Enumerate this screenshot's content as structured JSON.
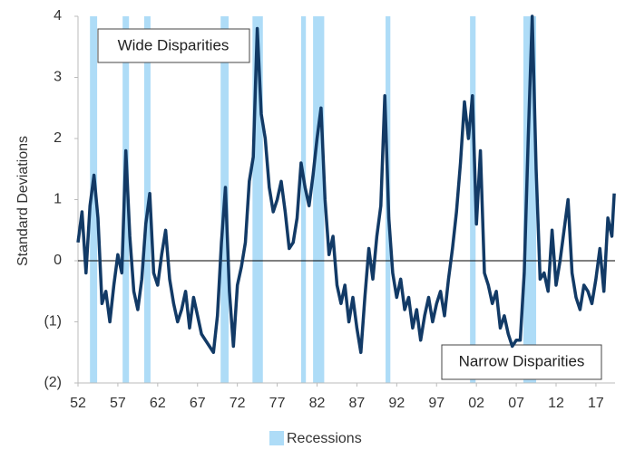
{
  "chart_data": {
    "type": "line",
    "y_label": "Standard Deviations",
    "annotations": [
      "Wide Disparities",
      "Narrow Disparities"
    ],
    "xlim": [
      1952,
      2019.4
    ],
    "ylim": [
      -2,
      4
    ],
    "yticks": [
      {
        "value": -2,
        "label": "(2)"
      },
      {
        "value": -1,
        "label": "(1)"
      },
      0,
      1,
      2,
      3,
      4
    ],
    "xticks": [
      {
        "value": 1952,
        "label": "52"
      },
      {
        "value": 1957,
        "label": "57"
      },
      {
        "value": 1962,
        "label": "62"
      },
      {
        "value": 1967,
        "label": "67"
      },
      {
        "value": 1972,
        "label": "72"
      },
      {
        "value": 1977,
        "label": "77"
      },
      {
        "value": 1982,
        "label": "82"
      },
      {
        "value": 1987,
        "label": "87"
      },
      {
        "value": 1992,
        "label": "92"
      },
      {
        "value": 1997,
        "label": "97"
      },
      {
        "value": 2002,
        "label": "02"
      },
      {
        "value": 2007,
        "label": "07"
      },
      {
        "value": 2012,
        "label": "12"
      },
      {
        "value": 2017,
        "label": "17"
      }
    ],
    "recessions": {
      "name": "Recessions",
      "color": "#aedcf7",
      "periods": [
        [
          1953.5,
          1954.4
        ],
        [
          1957.6,
          1958.4
        ],
        [
          1960.3,
          1961.1
        ],
        [
          1969.9,
          1970.9
        ],
        [
          1973.9,
          1975.2
        ],
        [
          1980.0,
          1980.6
        ],
        [
          1981.5,
          1982.9
        ],
        [
          1990.6,
          1991.2
        ],
        [
          2001.2,
          2001.9
        ],
        [
          2007.9,
          2009.5
        ]
      ]
    },
    "line_color": "#123a66",
    "x": [
      1952.0,
      1952.5,
      1953.0,
      1953.5,
      1954.0,
      1954.5,
      1955.0,
      1955.5,
      1956.0,
      1956.5,
      1957.0,
      1957.5,
      1958.0,
      1958.5,
      1959.0,
      1959.5,
      1960.0,
      1960.5,
      1961.0,
      1961.5,
      1962.0,
      1962.5,
      1963.0,
      1963.5,
      1964.0,
      1964.5,
      1965.0,
      1965.5,
      1966.0,
      1966.5,
      1967.0,
      1967.5,
      1968.0,
      1968.5,
      1969.0,
      1969.5,
      1970.0,
      1970.5,
      1971.0,
      1971.5,
      1972.0,
      1972.5,
      1973.0,
      1973.5,
      1974.0,
      1974.5,
      1975.0,
      1975.5,
      1976.0,
      1976.5,
      1977.0,
      1977.5,
      1978.0,
      1978.5,
      1979.0,
      1979.5,
      1980.0,
      1980.5,
      1981.0,
      1981.5,
      1982.0,
      1982.5,
      1983.0,
      1983.5,
      1984.0,
      1984.5,
      1985.0,
      1985.5,
      1986.0,
      1986.5,
      1987.0,
      1987.5,
      1988.0,
      1988.5,
      1989.0,
      1989.5,
      1990.0,
      1990.5,
      1991.0,
      1991.5,
      1992.0,
      1992.5,
      1993.0,
      1993.5,
      1994.0,
      1994.5,
      1995.0,
      1995.5,
      1996.0,
      1996.5,
      1997.0,
      1997.5,
      1998.0,
      1998.5,
      1999.0,
      1999.5,
      2000.0,
      2000.5,
      2001.0,
      2001.5,
      2002.0,
      2002.5,
      2003.0,
      2003.5,
      2004.0,
      2004.5,
      2005.0,
      2005.5,
      2006.0,
      2006.5,
      2007.0,
      2007.5,
      2008.0,
      2008.5,
      2009.0,
      2009.5,
      2010.0,
      2010.5,
      2011.0,
      2011.5,
      2012.0,
      2012.5,
      2013.0,
      2013.5,
      2014.0,
      2014.5,
      2015.0,
      2015.5,
      2016.0,
      2016.5,
      2017.0,
      2017.5,
      2018.0,
      2018.5,
      2019.0,
      2019.3
    ],
    "values": [
      0.3,
      0.8,
      -0.2,
      0.9,
      1.4,
      0.7,
      -0.7,
      -0.5,
      -1.0,
      -0.4,
      0.1,
      -0.2,
      1.8,
      0.4,
      -0.5,
      -0.8,
      -0.3,
      0.6,
      1.1,
      -0.2,
      -0.4,
      0.1,
      0.5,
      -0.3,
      -0.7,
      -1.0,
      -0.8,
      -0.5,
      -1.1,
      -0.6,
      -0.9,
      -1.2,
      -1.3,
      -1.4,
      -1.5,
      -0.9,
      0.3,
      1.2,
      -0.5,
      -1.4,
      -0.4,
      -0.1,
      0.3,
      1.3,
      1.7,
      3.8,
      2.4,
      2.0,
      1.2,
      0.8,
      1.0,
      1.3,
      0.8,
      0.2,
      0.3,
      0.7,
      1.6,
      1.2,
      0.9,
      1.4,
      2.0,
      2.5,
      1.0,
      0.1,
      0.4,
      -0.4,
      -0.7,
      -0.4,
      -1.0,
      -0.6,
      -1.1,
      -1.5,
      -0.6,
      0.2,
      -0.3,
      0.4,
      0.9,
      2.7,
      0.7,
      -0.2,
      -0.6,
      -0.3,
      -0.8,
      -0.6,
      -1.1,
      -0.8,
      -1.3,
      -0.9,
      -0.6,
      -1.0,
      -0.7,
      -0.5,
      -0.9,
      -0.3,
      0.2,
      0.8,
      1.6,
      2.6,
      2.0,
      2.7,
      0.6,
      1.8,
      -0.2,
      -0.4,
      -0.7,
      -0.5,
      -1.1,
      -0.9,
      -1.2,
      -1.4,
      -1.3,
      -1.3,
      -0.2,
      2.0,
      4.0,
      1.5,
      -0.3,
      -0.2,
      -0.5,
      0.5,
      -0.4,
      0.0,
      0.5,
      1.0,
      -0.2,
      -0.6,
      -0.8,
      -0.4,
      -0.5,
      -0.7,
      -0.3,
      0.2,
      -0.5,
      0.7,
      0.4,
      1.1
    ]
  }
}
